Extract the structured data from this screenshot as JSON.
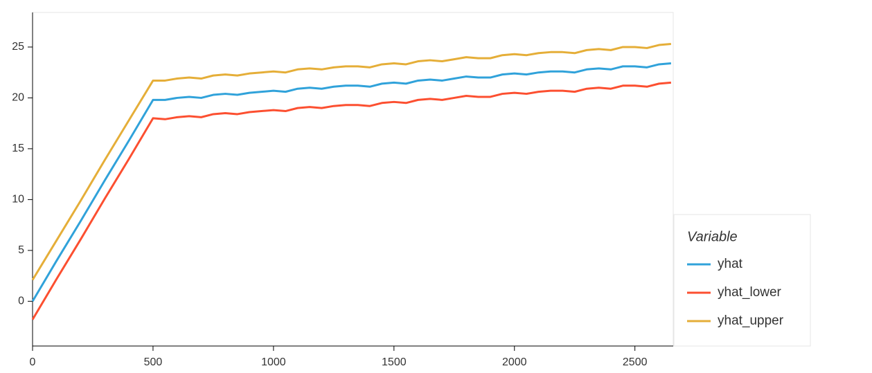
{
  "chart_data": {
    "type": "line",
    "legend_title": "Variable",
    "legend": "right",
    "grid": false,
    "x": [
      0,
      100,
      200,
      300,
      400,
      500,
      550,
      600,
      650,
      700,
      750,
      800,
      850,
      900,
      950,
      1000,
      1050,
      1100,
      1150,
      1200,
      1250,
      1300,
      1350,
      1400,
      1450,
      1500,
      1550,
      1600,
      1650,
      1700,
      1750,
      1800,
      1850,
      1900,
      1950,
      2000,
      2050,
      2100,
      2150,
      2200,
      2250,
      2300,
      2350,
      2400,
      2450,
      2500,
      2550,
      2600,
      2650
    ],
    "series": [
      {
        "name": "yhat",
        "color": "#30a2da",
        "values": [
          0,
          4,
          7.9,
          11.9,
          15.8,
          19.8,
          19.8,
          20.0,
          20.1,
          20.0,
          20.3,
          20.4,
          20.3,
          20.5,
          20.6,
          20.7,
          20.6,
          20.9,
          21.0,
          20.9,
          21.1,
          21.2,
          21.2,
          21.1,
          21.4,
          21.5,
          21.4,
          21.7,
          21.8,
          21.7,
          21.9,
          22.1,
          22.0,
          22.0,
          22.3,
          22.4,
          22.3,
          22.5,
          22.6,
          22.6,
          22.5,
          22.8,
          22.9,
          22.8,
          23.1,
          23.1,
          23.0,
          23.3,
          23.4
        ]
      },
      {
        "name": "yhat_lower",
        "color": "#fc4f30",
        "values": [
          -1.8,
          2.2,
          6.1,
          10.1,
          14,
          18,
          17.9,
          18.1,
          18.2,
          18.1,
          18.4,
          18.5,
          18.4,
          18.6,
          18.7,
          18.8,
          18.7,
          19.0,
          19.1,
          19.0,
          19.2,
          19.3,
          19.3,
          19.2,
          19.5,
          19.6,
          19.5,
          19.8,
          19.9,
          19.8,
          20.0,
          20.2,
          20.1,
          20.1,
          20.4,
          20.5,
          20.4,
          20.6,
          20.7,
          20.7,
          20.6,
          20.9,
          21.0,
          20.9,
          21.2,
          21.2,
          21.1,
          21.4,
          21.5
        ]
      },
      {
        "name": "yhat_upper",
        "color": "#e5ae38",
        "values": [
          2.1,
          6,
          9.9,
          13.9,
          17.8,
          21.7,
          21.7,
          21.9,
          22.0,
          21.9,
          22.2,
          22.3,
          22.2,
          22.4,
          22.5,
          22.6,
          22.5,
          22.8,
          22.9,
          22.8,
          23.0,
          23.1,
          23.1,
          23.0,
          23.3,
          23.4,
          23.3,
          23.6,
          23.7,
          23.6,
          23.8,
          24.0,
          23.9,
          23.9,
          24.2,
          24.3,
          24.2,
          24.4,
          24.5,
          24.5,
          24.4,
          24.7,
          24.8,
          24.7,
          25.0,
          25.0,
          24.9,
          25.2,
          25.3
        ]
      }
    ],
    "xlim": [
      0,
      2659
    ],
    "xticks": [
      0,
      500,
      1000,
      1500,
      2000,
      2500
    ],
    "ylim": [
      -4.4,
      28.4
    ],
    "yticks": [
      0,
      5,
      10,
      15,
      20,
      25
    ]
  }
}
